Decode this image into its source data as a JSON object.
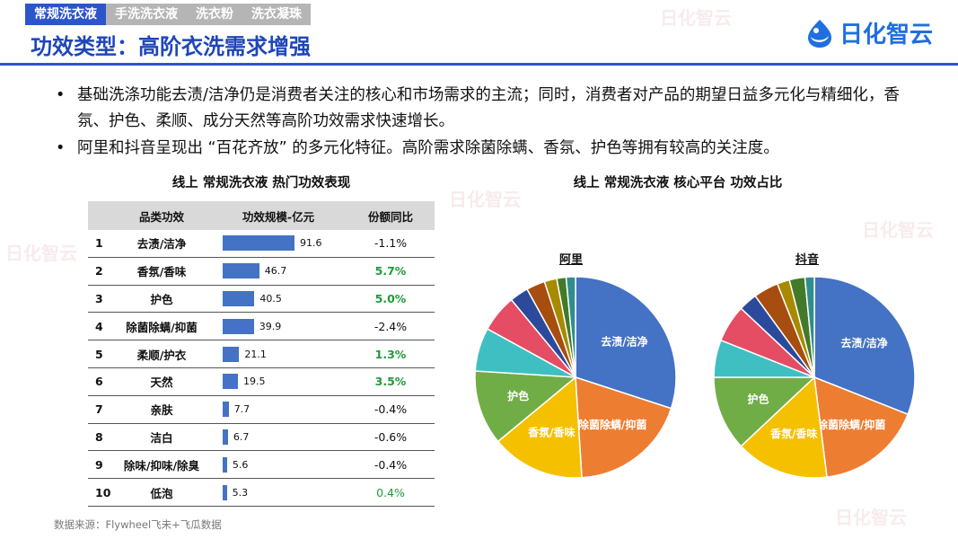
{
  "tabs": [
    {
      "label": "常规洗衣液",
      "active": true
    },
    {
      "label": "手洗洗衣液",
      "active": false
    },
    {
      "label": "洗衣粉",
      "active": false
    },
    {
      "label": "洗衣凝珠",
      "active": false
    }
  ],
  "title": "功效类型：高阶衣洗需求增强",
  "logo": {
    "text": "日化智云",
    "icon": "logo-drop-icon",
    "color": "#1f6fe0"
  },
  "bullets": [
    "基础洗涤功能去渍/洁净仍是消费者关注的核心和市场需求的主流；同时，消费者对产品的期望日益多元化与精细化，香氛、护色、柔顺、成分天然等高阶功效需求快速增长。",
    "阿里和抖音呈现出 “百花齐放” 的多元化特征。高阶需求除菌除螨、香氛、护色等拥有较高的关注度。"
  ],
  "table": {
    "title": "线上 常规洗衣液 热门功效表现",
    "headers": [
      "",
      "品类功效",
      "功效规模-亿元",
      "份额同比"
    ],
    "rows": [
      {
        "rank": "1",
        "name": "去渍/洁净",
        "value": 91.6,
        "value_label": "91.6",
        "yoy": "-1.1%",
        "yoy_style": "neg"
      },
      {
        "rank": "2",
        "name": "香氛/香味",
        "value": 46.7,
        "value_label": "46.7",
        "yoy": "5.7%",
        "yoy_style": "pos"
      },
      {
        "rank": "3",
        "name": "护色",
        "value": 40.5,
        "value_label": "40.5",
        "yoy": "5.0%",
        "yoy_style": "pos"
      },
      {
        "rank": "4",
        "name": "除菌除螨/抑菌",
        "value": 39.9,
        "value_label": "39.9",
        "yoy": "-2.4%",
        "yoy_style": "neg"
      },
      {
        "rank": "5",
        "name": "柔顺/护衣",
        "value": 21.1,
        "value_label": "21.1",
        "yoy": "1.3%",
        "yoy_style": "pos"
      },
      {
        "rank": "6",
        "name": "天然",
        "value": 19.5,
        "value_label": "19.5",
        "yoy": "3.5%",
        "yoy_style": "pos"
      },
      {
        "rank": "7",
        "name": "亲肤",
        "value": 7.7,
        "value_label": "7.7",
        "yoy": "-0.4%",
        "yoy_style": "neg"
      },
      {
        "rank": "8",
        "name": "洁白",
        "value": 6.7,
        "value_label": "6.7",
        "yoy": "-0.6%",
        "yoy_style": "neg"
      },
      {
        "rank": "9",
        "name": "除味/抑味/除臭",
        "value": 5.6,
        "value_label": "5.6",
        "yoy": "-0.4%",
        "yoy_style": "neg"
      },
      {
        "rank": "10",
        "name": "低泡",
        "value": 5.3,
        "value_label": "5.3",
        "yoy": "0.4%",
        "yoy_style": "pos-plain"
      }
    ]
  },
  "chart_data": [
    {
      "type": "bar",
      "orientation": "horizontal",
      "title": "线上 常规洗衣液 热门功效表现",
      "categories": [
        "去渍/洁净",
        "香氛/香味",
        "护色",
        "除菌除螨/抑菌",
        "柔顺/护衣",
        "天然",
        "亲肤",
        "洁白",
        "除味/抑味/除臭",
        "低泡"
      ],
      "series": [
        {
          "name": "功效规模-亿元",
          "values": [
            91.6,
            46.7,
            40.5,
            39.9,
            21.1,
            19.5,
            7.7,
            6.7,
            5.6,
            5.3
          ],
          "color": "#4472c4"
        },
        {
          "name": "份额同比",
          "values": [
            "-1.1%",
            "5.7%",
            "5.0%",
            "-2.4%",
            "1.3%",
            "3.5%",
            "-0.4%",
            "-0.6%",
            "-0.4%",
            "0.4%"
          ]
        }
      ]
    },
    {
      "type": "pie",
      "title": "线上 常规洗衣液 核心平台 功效占比",
      "pies": [
        {
          "name": "阿里",
          "slices": [
            {
              "label": "去渍/洁净",
              "value": 30,
              "color": "#4472c4",
              "show_label": true
            },
            {
              "label": "除菌除螨/抑菌",
              "value": 19,
              "color": "#ed7d31",
              "show_label": true
            },
            {
              "label": "香氛/香味",
              "value": 15,
              "color": "#f5c000",
              "show_label": true
            },
            {
              "label": "护色",
              "value": 12,
              "color": "#70ad47",
              "show_label": true
            },
            {
              "label": "",
              "value": 7,
              "color": "#3fbfc1",
              "show_label": false
            },
            {
              "label": "",
              "value": 6,
              "color": "#e44d63",
              "show_label": false
            },
            {
              "label": "",
              "value": 3,
              "color": "#2b4a9c",
              "show_label": false
            },
            {
              "label": "",
              "value": 3,
              "color": "#a64d0f",
              "show_label": false
            },
            {
              "label": "",
              "value": 2,
              "color": "#a88a00",
              "show_label": false
            },
            {
              "label": "",
              "value": 1.5,
              "color": "#437a2a",
              "show_label": false
            },
            {
              "label": "",
              "value": 1.5,
              "color": "#2f8d8f",
              "show_label": false
            }
          ]
        },
        {
          "name": "抖音",
          "slices": [
            {
              "label": "去渍/洁净",
              "value": 31,
              "color": "#4472c4",
              "show_label": true
            },
            {
              "label": "除菌除螨/抑菌",
              "value": 17,
              "color": "#ed7d31",
              "show_label": true
            },
            {
              "label": "香氛/香味",
              "value": 15,
              "color": "#f5c000",
              "show_label": true
            },
            {
              "label": "护色",
              "value": 12,
              "color": "#70ad47",
              "show_label": true
            },
            {
              "label": "",
              "value": 6,
              "color": "#3fbfc1",
              "show_label": false
            },
            {
              "label": "",
              "value": 6,
              "color": "#e44d63",
              "show_label": false
            },
            {
              "label": "",
              "value": 3,
              "color": "#2b4a9c",
              "show_label": false
            },
            {
              "label": "",
              "value": 4,
              "color": "#a64d0f",
              "show_label": false
            },
            {
              "label": "",
              "value": 2,
              "color": "#a88a00",
              "show_label": false
            },
            {
              "label": "",
              "value": 2.5,
              "color": "#437a2a",
              "show_label": false
            },
            {
              "label": "",
              "value": 1.5,
              "color": "#2f8d8f",
              "show_label": false
            }
          ]
        }
      ]
    }
  ],
  "source": "数据来源：Flywheel飞未+飞瓜数据",
  "watermark": "日化智云"
}
